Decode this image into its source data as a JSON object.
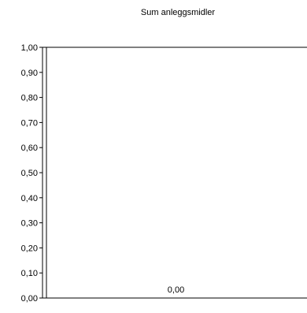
{
  "chart_data": {
    "type": "bar",
    "title": "Sum anleggsmidler",
    "xlabel": "",
    "ylabel": "",
    "ylim": [
      0,
      1
    ],
    "y_tick_labels": [
      "0,00",
      "0,10",
      "0,20",
      "0,30",
      "0,40",
      "0,50",
      "0,60",
      "0,70",
      "0,80",
      "0,90",
      "1,00"
    ],
    "y_ticks": [
      0,
      0.1,
      0.2,
      0.3,
      0.4,
      0.5,
      0.6,
      0.7,
      0.8,
      0.9,
      1.0
    ],
    "categories": [
      ""
    ],
    "values": [
      0
    ],
    "data_labels": [
      "0,00"
    ],
    "grid": false,
    "colors": {
      "axis": "#000000",
      "text": "#000000",
      "background": "#ffffff"
    }
  }
}
